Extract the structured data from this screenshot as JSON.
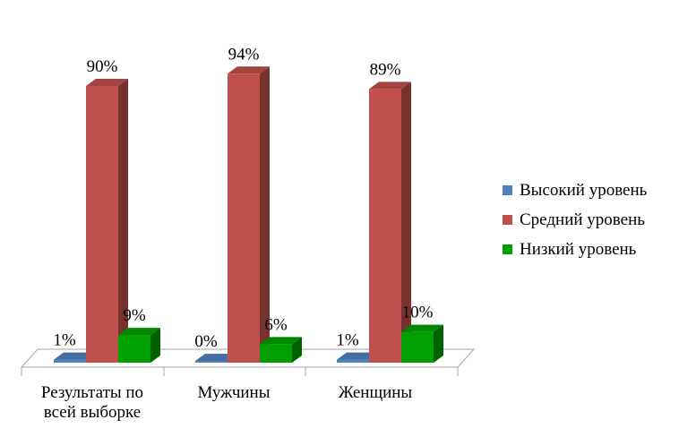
{
  "chart_data": {
    "type": "bar",
    "subtype": "3d-clustered-column",
    "title": "",
    "xlabel": "",
    "ylabel": "",
    "ylim": [
      0,
      100
    ],
    "grid": false,
    "legend_position": "right",
    "categories": [
      [
        "Результаты по",
        "всей выборке"
      ],
      [
        "Мужчины"
      ],
      [
        "Женщины"
      ]
    ],
    "series": [
      {
        "name": "Высокий уровень",
        "color": "#4F81BD",
        "values": [
          1,
          0,
          1
        ],
        "labels": [
          "1%",
          "0%",
          "1%"
        ]
      },
      {
        "name": "Средний уровень",
        "color": "#C0504D",
        "values": [
          90,
          94,
          89
        ],
        "labels": [
          "90%",
          "94%",
          "89%"
        ]
      },
      {
        "name": "Низкий уровень",
        "color": "#00A000",
        "values": [
          9,
          6,
          10
        ],
        "labels": [
          "9%",
          "6%",
          "10%"
        ]
      }
    ]
  }
}
